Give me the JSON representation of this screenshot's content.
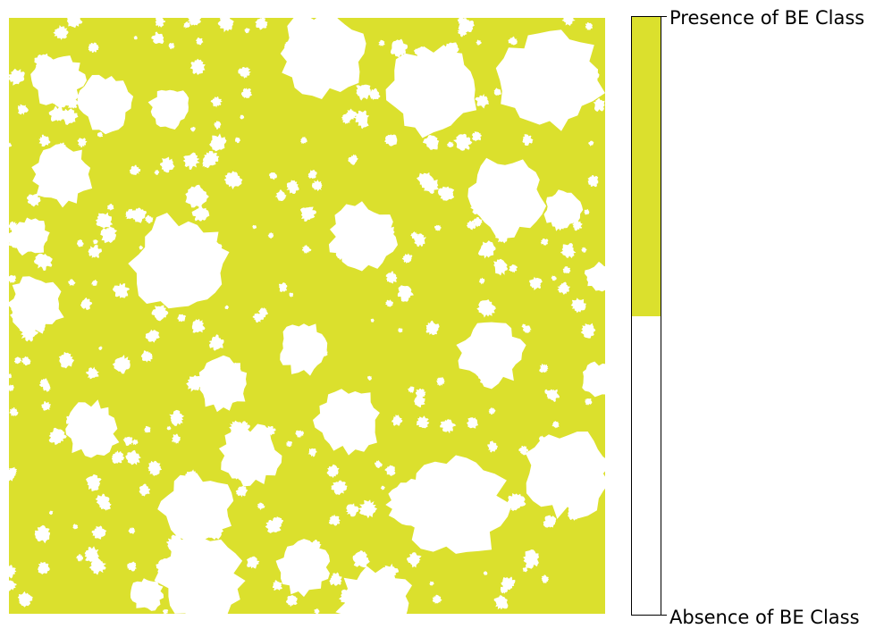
{
  "map": {
    "description_name": "binary-class-map",
    "colors": {
      "presence": "#dbe02d",
      "absence": "#ffffff"
    }
  },
  "colorbar": {
    "top_label": "Presence of BE Class",
    "bottom_label": "Absence of BE Class",
    "presence_fraction": 0.5,
    "colors": {
      "presence": "#dbe02d",
      "absence": "#ffffff",
      "border": "#000000"
    }
  }
}
